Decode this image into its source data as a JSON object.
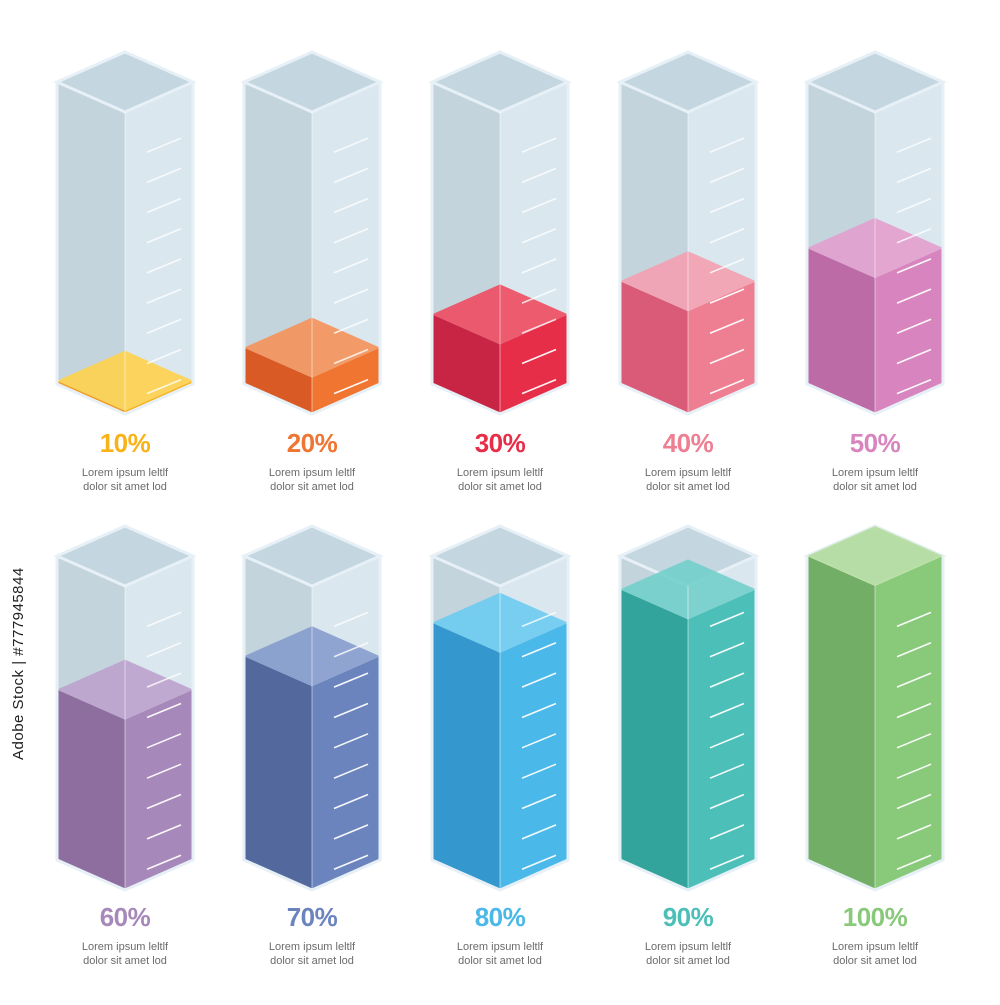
{
  "chart_data": {
    "type": "bar",
    "style": "isometric-cylinders",
    "unit": "%",
    "ylim": [
      0,
      100
    ],
    "gradations": 10,
    "items": [
      {
        "label": "10%",
        "value": 10,
        "caption_line1": "Lorem ipsum leltlf",
        "caption_line2": "dolor sit amet lod",
        "color": "#F9B217",
        "color_side": "#F39A1E",
        "color_top": "#FFD24D"
      },
      {
        "label": "20%",
        "value": 20,
        "caption_line1": "Lorem ipsum leltlf",
        "caption_line2": "dolor sit amet lod",
        "color": "#EF7531",
        "color_side": "#DA5A26",
        "color_top": "#F59259"
      },
      {
        "label": "30%",
        "value": 30,
        "caption_line1": "Lorem ipsum leltlf",
        "caption_line2": "dolor sit amet lod",
        "color": "#E72E48",
        "color_side": "#C72543",
        "color_top": "#EE4B61"
      },
      {
        "label": "40%",
        "value": 40,
        "caption_line1": "Lorem ipsum leltlf",
        "caption_line2": "dolor sit amet lod",
        "color": "#EE7F92",
        "color_side": "#D95B77",
        "color_top": "#F4A0B0"
      },
      {
        "label": "50%",
        "value": 50,
        "caption_line1": "Lorem ipsum leltlf",
        "caption_line2": "dolor sit amet lod",
        "color": "#D884BE",
        "color_side": "#BC6BA6",
        "color_top": "#E29ECD"
      },
      {
        "label": "60%",
        "value": 60,
        "caption_line1": "Lorem ipsum leltlf",
        "caption_line2": "dolor sit amet lod",
        "color": "#A788BA",
        "color_side": "#8D6E9F",
        "color_top": "#BCA2CC"
      },
      {
        "label": "70%",
        "value": 70,
        "caption_line1": "Lorem ipsum leltlf",
        "caption_line2": "dolor sit amet lod",
        "color": "#6B84BE",
        "color_side": "#53699E",
        "color_top": "#869CCC"
      },
      {
        "label": "80%",
        "value": 80,
        "caption_line1": "Lorem ipsum leltlf",
        "caption_line2": "dolor sit amet lod",
        "color": "#4AB8E8",
        "color_side": "#3498CE",
        "color_top": "#6BCBF0"
      },
      {
        "label": "90%",
        "value": 90,
        "caption_line1": "Lorem ipsum leltlf",
        "caption_line2": "dolor sit amet lod",
        "color": "#4CBFB9",
        "color_side": "#32A49C",
        "color_top": "#72CFCB"
      },
      {
        "label": "100%",
        "value": 100,
        "caption_line1": "Lorem ipsum leltlf",
        "caption_line2": "dolor sit amet lod",
        "color": "#88C97A",
        "color_side": "#72AE66",
        "color_top": "#B5DE9E"
      }
    ]
  },
  "watermark": "Adobe Stock | #777945844",
  "glass": {
    "left": "#B8CCD6",
    "right": "#D4E3EC",
    "top": "#C4D6E0",
    "edge": "#E6F0F6"
  }
}
